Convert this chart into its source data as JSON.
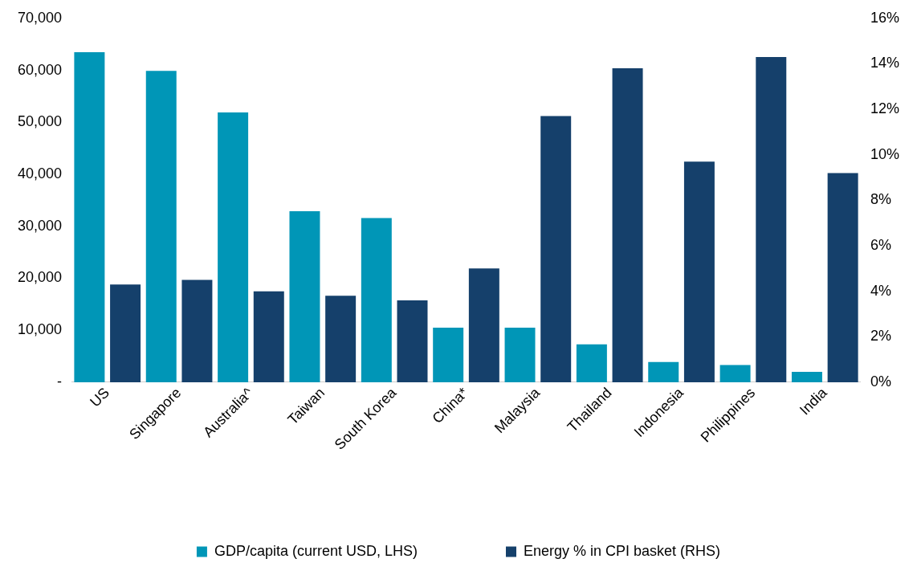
{
  "chart_data": {
    "type": "bar",
    "categories": [
      "US",
      "Singapore",
      "Australia^",
      "Taiwan",
      "South Korea",
      "China*",
      "Malaysia",
      "Thailand",
      "Indonesia",
      "Philippines",
      "India"
    ],
    "series": [
      {
        "name": "GDP/capita (current USD, LHS)",
        "color": "#0096b7",
        "values": [
          63500,
          59900,
          51900,
          32900,
          31600,
          10500,
          10500,
          7300,
          3900,
          3300,
          2000
        ]
      },
      {
        "name": "Energy % in CPI basket (RHS)",
        "color": "#15406b",
        "axis": "y2",
        "values": [
          4.3,
          4.5,
          4.0,
          3.8,
          3.6,
          5.0,
          11.7,
          13.8,
          9.7,
          14.3,
          9.2
        ]
      }
    ],
    "ylim": [
      0,
      70000
    ],
    "yticks": [
      {
        "value": 0,
        "label": "-"
      },
      {
        "value": 10000,
        "label": "10,000"
      },
      {
        "value": 20000,
        "label": "20,000"
      },
      {
        "value": 30000,
        "label": "30,000"
      },
      {
        "value": 40000,
        "label": "40,000"
      },
      {
        "value": 50000,
        "label": "50,000"
      },
      {
        "value": 60000,
        "label": "60,000"
      },
      {
        "value": 70000,
        "label": "70,000"
      }
    ],
    "y2lim": [
      0,
      16
    ],
    "y2ticks": [
      {
        "value": 0,
        "label": "0%"
      },
      {
        "value": 2,
        "label": "2%"
      },
      {
        "value": 4,
        "label": "4%"
      },
      {
        "value": 6,
        "label": "6%"
      },
      {
        "value": 8,
        "label": "8%"
      },
      {
        "value": 10,
        "label": "10%"
      },
      {
        "value": 12,
        "label": "12%"
      },
      {
        "value": 14,
        "label": "14%"
      },
      {
        "value": 16,
        "label": "16%"
      }
    ],
    "grid": false,
    "legend": "bottom"
  }
}
